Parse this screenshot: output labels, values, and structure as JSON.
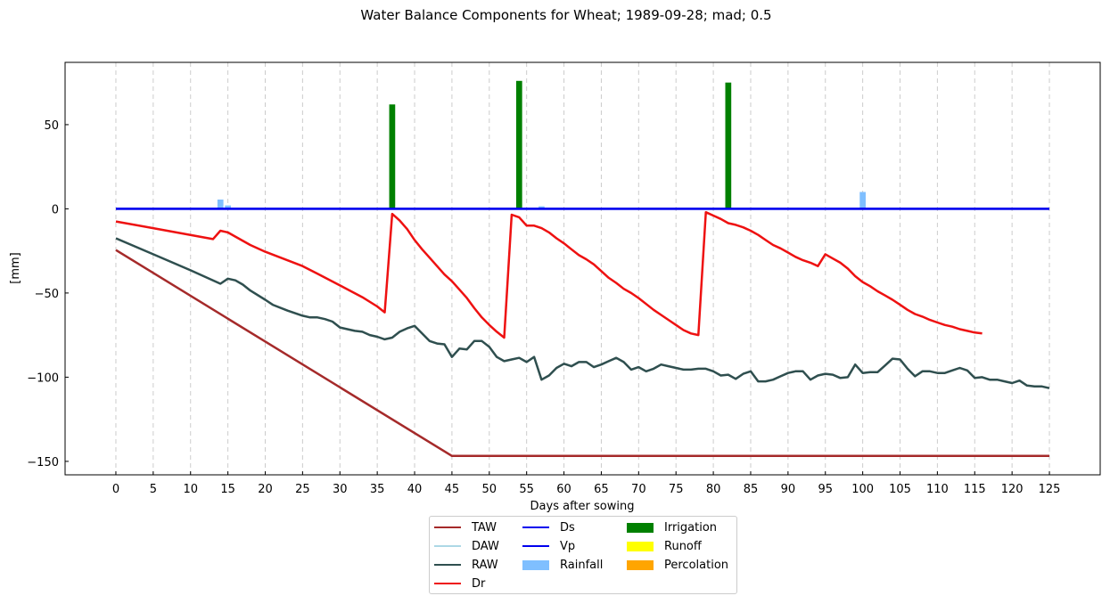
{
  "chart_data": {
    "type": "line",
    "title": "Water Balance Components for Wheat; 1989-09-28; mad; 0.5",
    "xlabel": "Days after sowing",
    "ylabel": "[mm]",
    "xlim": [
      -6.8,
      131.8
    ],
    "ylim": [
      -158,
      87
    ],
    "x_ticks": [
      0,
      5,
      10,
      15,
      20,
      25,
      30,
      35,
      40,
      45,
      50,
      55,
      60,
      65,
      70,
      75,
      80,
      85,
      90,
      95,
      100,
      105,
      110,
      115,
      120,
      125
    ],
    "y_ticks": [
      -150,
      -100,
      -50,
      0,
      50
    ],
    "y_tick_labels": [
      "−150",
      "−100",
      "−50",
      "0",
      "50"
    ],
    "grid": "x-dashed",
    "legend_placement": "bottom-center",
    "series": [
      {
        "name": "TAW",
        "kind": "line",
        "color": "#a52a2a",
        "points": [
          [
            0,
            -24.5
          ],
          [
            45,
            -146.8
          ],
          [
            125,
            -146.8
          ]
        ]
      },
      {
        "name": "DAW",
        "kind": "line",
        "color": "#add8e6",
        "points": []
      },
      {
        "name": "RAW",
        "kind": "line",
        "color": "#2f4f4f",
        "points": [
          [
            0,
            -17.5
          ],
          [
            5,
            -27
          ],
          [
            10,
            -36.5
          ],
          [
            14,
            -44.5
          ],
          [
            15,
            -41.5
          ],
          [
            16,
            -42.5
          ],
          [
            17,
            -45
          ],
          [
            18,
            -48.5
          ],
          [
            20,
            -54
          ],
          [
            21,
            -57
          ],
          [
            23,
            -60.5
          ],
          [
            24,
            -62
          ],
          [
            25,
            -63.5
          ],
          [
            26,
            -64.5
          ],
          [
            27,
            -64.5
          ],
          [
            28,
            -65.5
          ],
          [
            29,
            -67
          ],
          [
            30,
            -70.5
          ],
          [
            31,
            -71.5
          ],
          [
            32,
            -72.5
          ],
          [
            33,
            -73
          ],
          [
            34,
            -75
          ],
          [
            35,
            -76
          ],
          [
            36,
            -77.5
          ],
          [
            37,
            -76.5
          ],
          [
            38,
            -73
          ],
          [
            39,
            -71
          ],
          [
            40,
            -69.5
          ],
          [
            41,
            -74
          ],
          [
            42,
            -78.5
          ],
          [
            43,
            -80
          ],
          [
            44,
            -80.5
          ],
          [
            45,
            -88
          ],
          [
            46,
            -83
          ],
          [
            47,
            -83.5
          ],
          [
            48,
            -78.5
          ],
          [
            49,
            -78.5
          ],
          [
            50,
            -82
          ],
          [
            51,
            -88
          ],
          [
            52,
            -90.5
          ],
          [
            53,
            -89.5
          ],
          [
            54,
            -88.5
          ],
          [
            55,
            -91
          ],
          [
            56,
            -88
          ],
          [
            57,
            -101.5
          ],
          [
            58,
            -99
          ],
          [
            59,
            -94.5
          ],
          [
            60,
            -92
          ],
          [
            61,
            -93.5
          ],
          [
            62,
            -91
          ],
          [
            63,
            -91
          ],
          [
            64,
            -94
          ],
          [
            65,
            -92.5
          ],
          [
            66,
            -90.5
          ],
          [
            67,
            -88.5
          ],
          [
            68,
            -91
          ],
          [
            69,
            -95.5
          ],
          [
            70,
            -94
          ],
          [
            71,
            -96.5
          ],
          [
            72,
            -95
          ],
          [
            73,
            -92.5
          ],
          [
            74,
            -93.5
          ],
          [
            75,
            -94.5
          ],
          [
            76,
            -95.5
          ],
          [
            77,
            -95.5
          ],
          [
            78,
            -95
          ],
          [
            79,
            -95
          ],
          [
            80,
            -96.5
          ],
          [
            81,
            -99
          ],
          [
            82,
            -98.5
          ],
          [
            83,
            -101
          ],
          [
            84,
            -98
          ],
          [
            85,
            -96.5
          ],
          [
            86,
            -102.5
          ],
          [
            87,
            -102.5
          ],
          [
            88,
            -101.5
          ],
          [
            89,
            -99.5
          ],
          [
            90,
            -97.5
          ],
          [
            91,
            -96.5
          ],
          [
            92,
            -96.5
          ],
          [
            93,
            -101.5
          ],
          [
            94,
            -99
          ],
          [
            95,
            -98
          ],
          [
            96,
            -98.5
          ],
          [
            97,
            -100.5
          ],
          [
            98,
            -100
          ],
          [
            99,
            -92.5
          ],
          [
            100,
            -97.5
          ],
          [
            101,
            -97
          ],
          [
            102,
            -97
          ],
          [
            103,
            -93
          ],
          [
            104,
            -89
          ],
          [
            105,
            -89.5
          ],
          [
            106,
            -95
          ],
          [
            107,
            -99.5
          ],
          [
            108,
            -96.5
          ],
          [
            109,
            -96.5
          ],
          [
            110,
            -97.5
          ],
          [
            111,
            -97.5
          ],
          [
            112,
            -96
          ],
          [
            113,
            -94.5
          ],
          [
            114,
            -96
          ],
          [
            115,
            -100.5
          ],
          [
            116,
            -100
          ],
          [
            117,
            -101.5
          ],
          [
            118,
            -101.5
          ],
          [
            119,
            -102.5
          ],
          [
            120,
            -103.5
          ],
          [
            121,
            -102
          ],
          [
            122,
            -105
          ],
          [
            123,
            -105.5
          ],
          [
            124,
            -105.5
          ],
          [
            125,
            -106.5
          ]
        ]
      },
      {
        "name": "Dr",
        "kind": "line",
        "color": "#ee1111",
        "points": [
          [
            0,
            -7.5
          ],
          [
            5,
            -11.5
          ],
          [
            13,
            -18
          ],
          [
            14,
            -13
          ],
          [
            15,
            -14
          ],
          [
            16,
            -16.5
          ],
          [
            18,
            -21.5
          ],
          [
            20,
            -25.5
          ],
          [
            25,
            -34
          ],
          [
            27,
            -38.5
          ],
          [
            30,
            -45.5
          ],
          [
            33,
            -52.5
          ],
          [
            35,
            -58
          ],
          [
            36,
            -61.5
          ],
          [
            37,
            -3
          ],
          [
            38,
            -7
          ],
          [
            39,
            -12
          ],
          [
            40,
            -18.5
          ],
          [
            41,
            -24
          ],
          [
            42,
            -29
          ],
          [
            43,
            -34
          ],
          [
            44,
            -39
          ],
          [
            45,
            -43
          ],
          [
            46,
            -48
          ],
          [
            47,
            -53
          ],
          [
            48,
            -59
          ],
          [
            49,
            -64.5
          ],
          [
            50,
            -69
          ],
          [
            51,
            -73
          ],
          [
            52,
            -76.5
          ],
          [
            53,
            -3.5
          ],
          [
            54,
            -5
          ],
          [
            55,
            -10
          ],
          [
            56,
            -10
          ],
          [
            57,
            -11.5
          ],
          [
            58,
            -14
          ],
          [
            59,
            -17.5
          ],
          [
            60,
            -20.5
          ],
          [
            61,
            -24
          ],
          [
            62,
            -27.5
          ],
          [
            63,
            -30
          ],
          [
            64,
            -33
          ],
          [
            65,
            -37
          ],
          [
            66,
            -41
          ],
          [
            67,
            -44
          ],
          [
            68,
            -47.5
          ],
          [
            69,
            -50
          ],
          [
            70,
            -53
          ],
          [
            71,
            -56.5
          ],
          [
            72,
            -60
          ],
          [
            73,
            -63
          ],
          [
            74,
            -66
          ],
          [
            75,
            -69
          ],
          [
            76,
            -72
          ],
          [
            77,
            -74
          ],
          [
            78,
            -75
          ],
          [
            79,
            -2
          ],
          [
            80,
            -4
          ],
          [
            81,
            -6
          ],
          [
            82,
            -8.5
          ],
          [
            83,
            -9.5
          ],
          [
            84,
            -11
          ],
          [
            85,
            -13
          ],
          [
            86,
            -15.5
          ],
          [
            87,
            -18.5
          ],
          [
            88,
            -21.5
          ],
          [
            89,
            -23.5
          ],
          [
            90,
            -26
          ],
          [
            91,
            -28.5
          ],
          [
            92,
            -30.5
          ],
          [
            93,
            -32
          ],
          [
            94,
            -34
          ],
          [
            95,
            -27
          ],
          [
            96,
            -29.5
          ],
          [
            97,
            -32
          ],
          [
            98,
            -35.5
          ],
          [
            99,
            -40
          ],
          [
            100,
            -43.5
          ],
          [
            101,
            -46
          ],
          [
            102,
            -49
          ],
          [
            103,
            -51.5
          ],
          [
            104,
            -54
          ],
          [
            105,
            -57
          ],
          [
            106,
            -60
          ],
          [
            107,
            -62.5
          ],
          [
            108,
            -64
          ],
          [
            109,
            -66
          ],
          [
            110,
            -67.5
          ],
          [
            111,
            -69
          ],
          [
            112,
            -70
          ],
          [
            113,
            -71.5
          ],
          [
            114,
            -72.5
          ],
          [
            115,
            -73.5
          ],
          [
            116,
            -74
          ]
        ]
      },
      {
        "name": "Ds",
        "kind": "line",
        "color": "#0000ee",
        "points": [
          [
            0,
            0
          ],
          [
            125,
            0
          ]
        ]
      },
      {
        "name": "Vp",
        "kind": "line",
        "color": "#0000ee",
        "points": [
          [
            0,
            0
          ],
          [
            125,
            0
          ]
        ]
      },
      {
        "name": "Rainfall",
        "kind": "bar",
        "color": "#7fbfff",
        "points": [
          [
            14,
            5.5
          ],
          [
            15,
            2
          ],
          [
            57,
            1.5
          ],
          [
            100,
            10
          ]
        ]
      },
      {
        "name": "Irrigation",
        "kind": "bar",
        "color": "#008000",
        "points": [
          [
            37,
            62
          ],
          [
            54,
            76
          ],
          [
            82,
            75
          ]
        ]
      },
      {
        "name": "Runoff",
        "kind": "bar",
        "color": "#ffff00",
        "points": []
      },
      {
        "name": "Percolation",
        "kind": "bar",
        "color": "#ffa500",
        "points": []
      }
    ]
  }
}
